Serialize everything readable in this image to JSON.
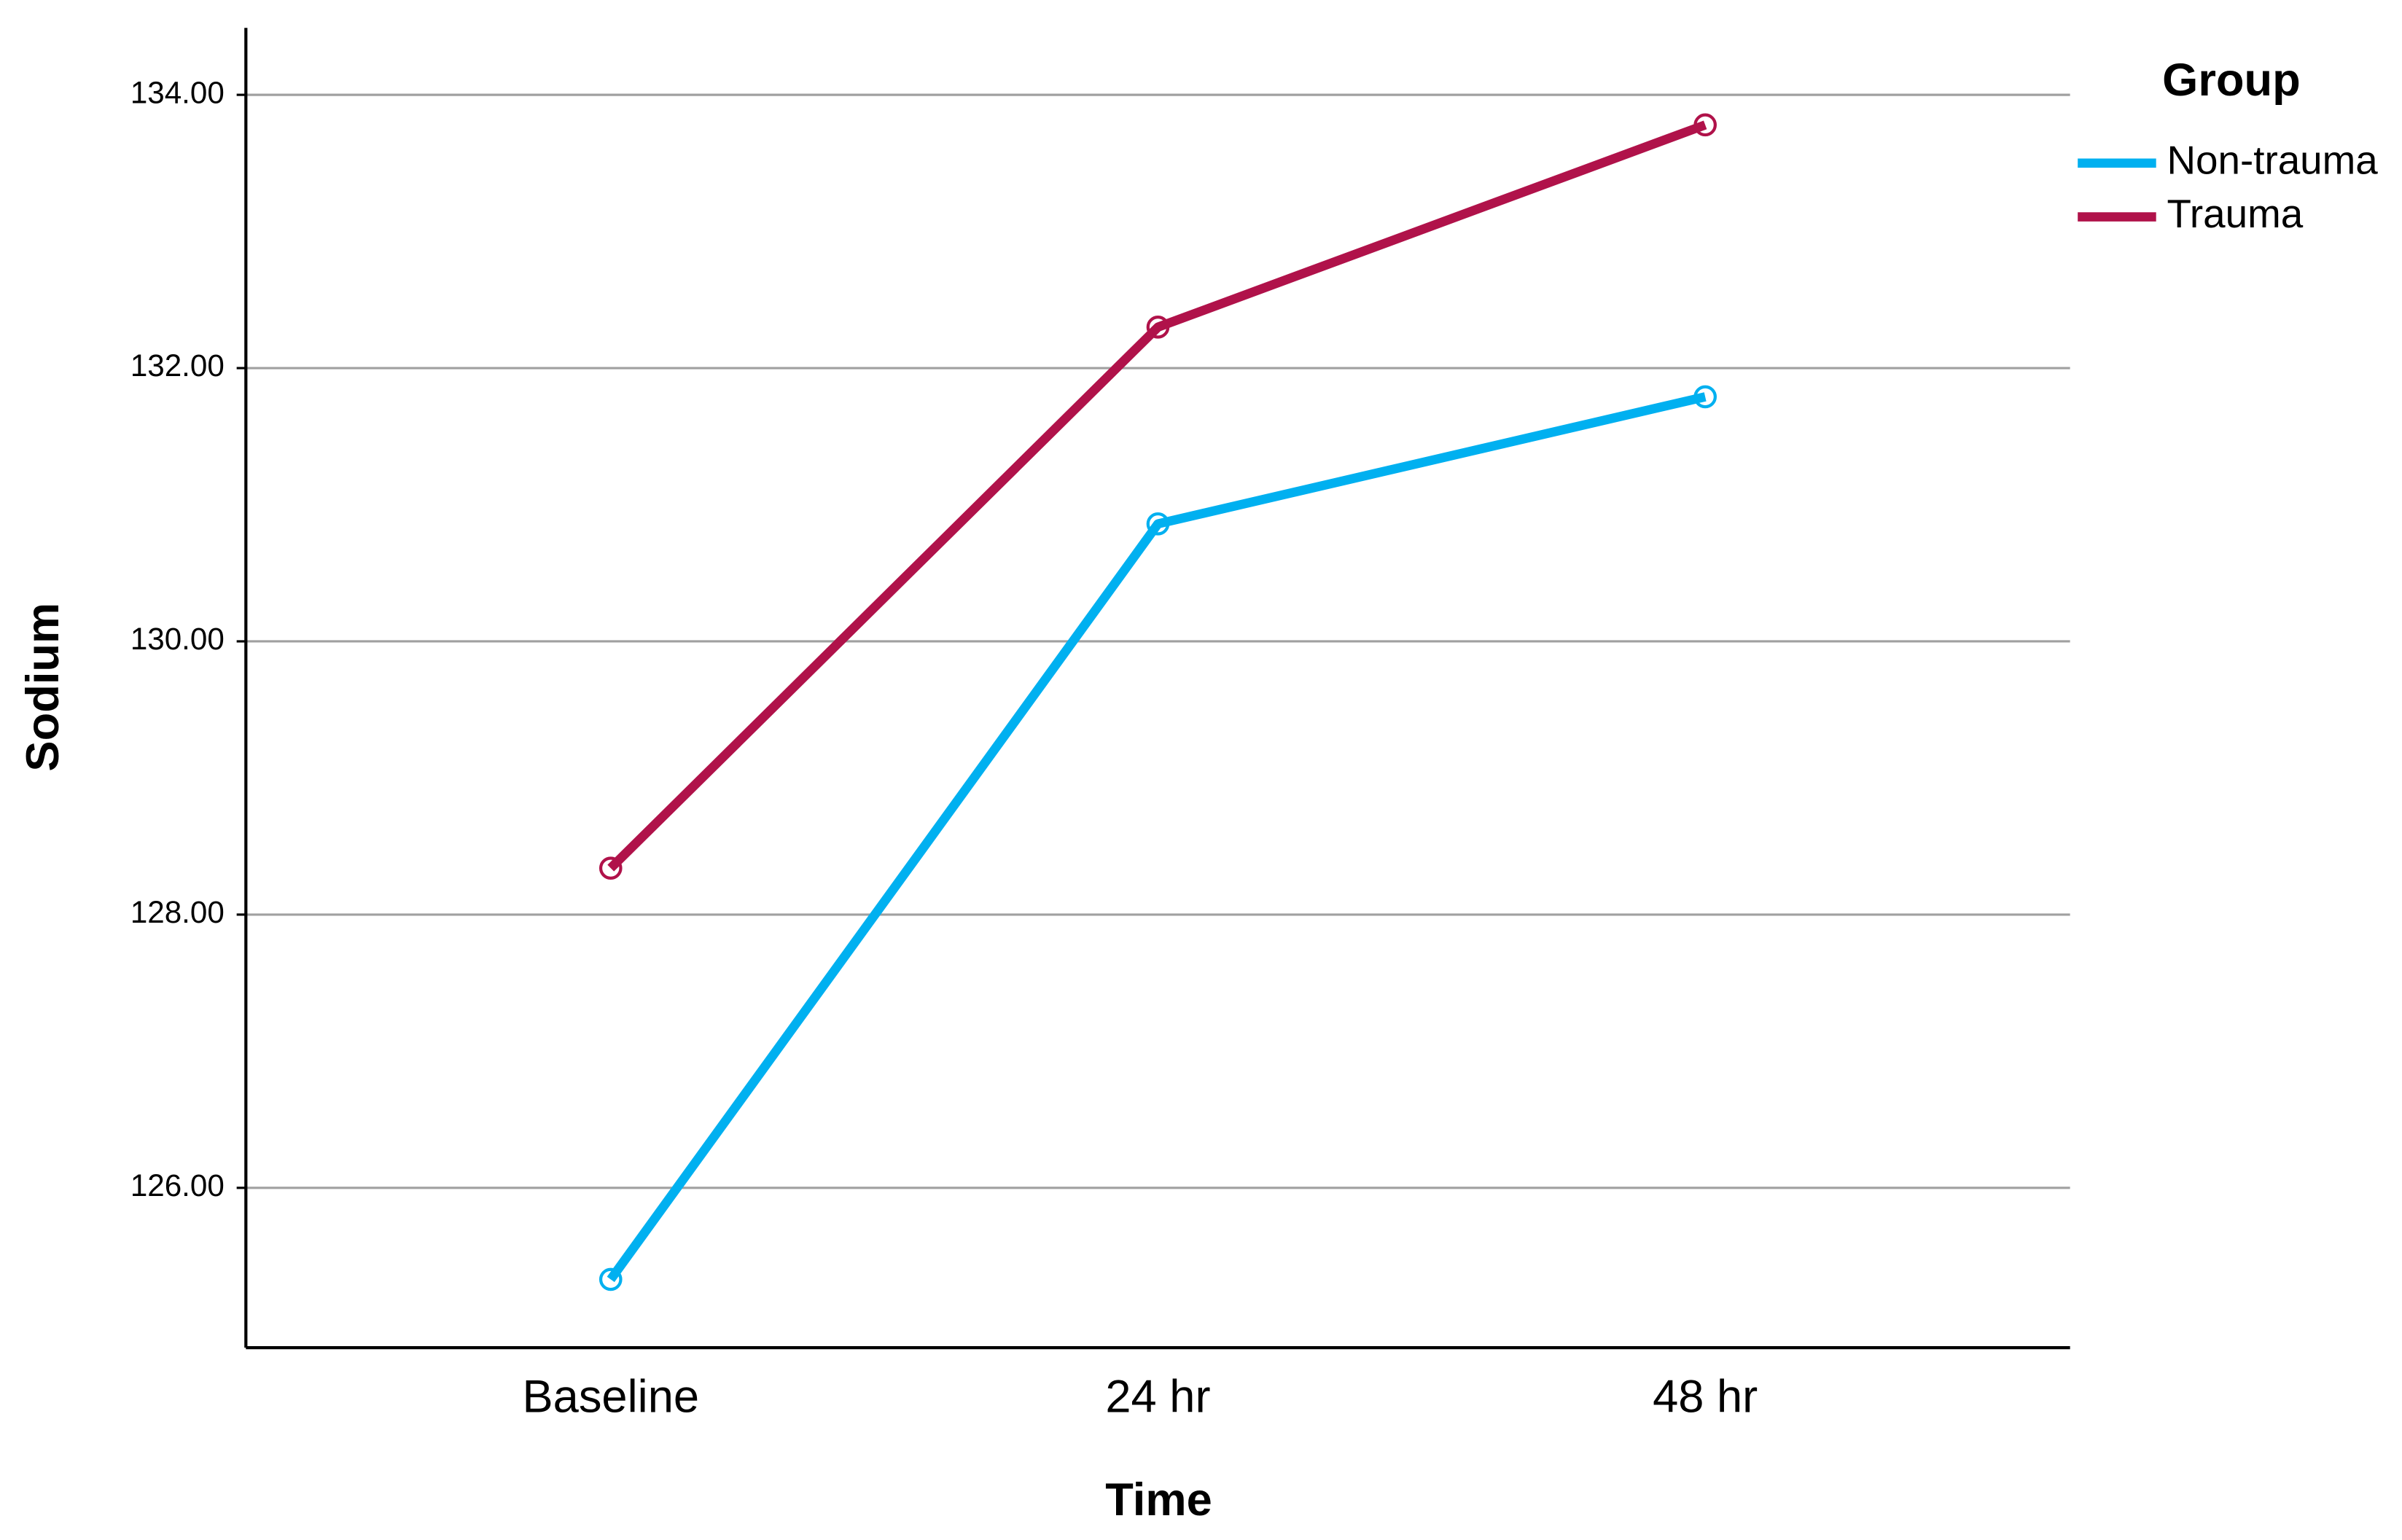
{
  "chart_data": {
    "type": "line",
    "x_label": "Time",
    "y_label": "Sodium",
    "categories": [
      "Baseline",
      "24 hr",
      "48 hr"
    ],
    "series": [
      {
        "name": "Non-trauma",
        "color": "#00b0f0",
        "values": [
          125.33,
          130.86,
          131.79
        ]
      },
      {
        "name": "Trauma",
        "color": "#b0124a",
        "values": [
          128.34,
          132.3,
          133.78
        ]
      }
    ],
    "ylim": [
      124.83,
      134.49
    ],
    "yticks": [
      {
        "value": 126,
        "label": "126.00"
      },
      {
        "value": 128,
        "label": "128.00"
      },
      {
        "value": 130,
        "label": "130.00"
      },
      {
        "value": 132,
        "label": "132.00"
      },
      {
        "value": 134,
        "label": "134.00"
      }
    ],
    "grid": true,
    "legend_title": "Group",
    "legend": "top-right"
  }
}
